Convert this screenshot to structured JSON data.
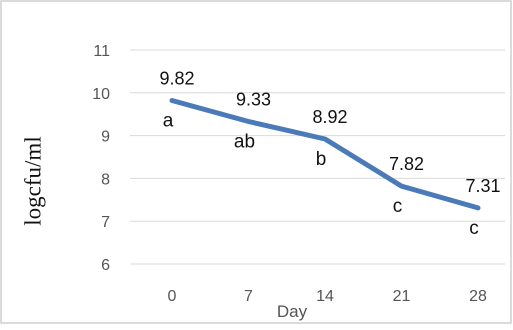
{
  "chart_data": {
    "type": "line",
    "xlabel": "Day",
    "ylabel": "logcfu/ml",
    "categories": [
      "0",
      "7",
      "14",
      "21",
      "28"
    ],
    "values": [
      9.82,
      9.33,
      8.92,
      7.82,
      7.31
    ],
    "data_labels": [
      "9.82",
      "9.33",
      "8.92",
      "7.82",
      "7.31"
    ],
    "significance_letters": [
      "a",
      "ab",
      "b",
      "c",
      "c"
    ],
    "ylim": [
      6,
      11
    ],
    "yticks": [
      "6",
      "7",
      "8",
      "9",
      "10",
      "11"
    ],
    "grid": "horizontal",
    "line_color": "#4a7ab8",
    "grid_color": "#d9d9d9",
    "frame_color": "#cfcfcf"
  }
}
